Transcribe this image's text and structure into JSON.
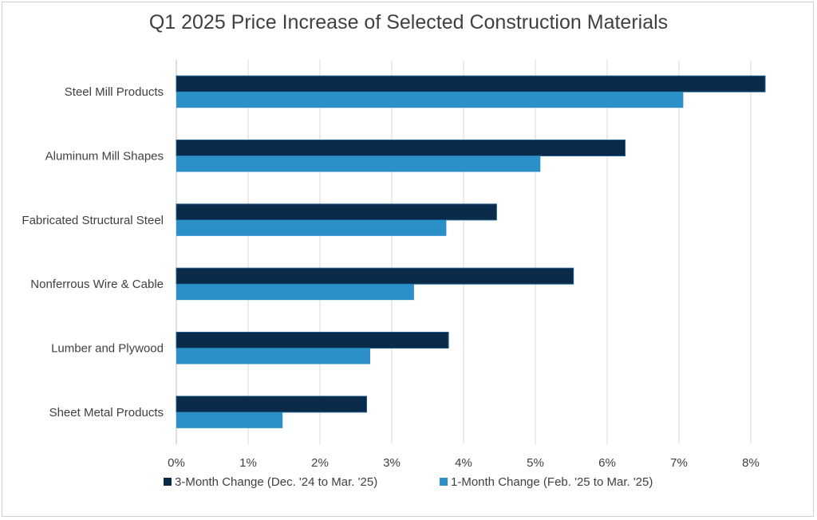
{
  "chart_data": {
    "type": "bar",
    "orientation": "horizontal",
    "title": "Q1 2025 Price Increase of Selected Construction Materials",
    "categories": [
      "Steel Mill Products",
      "Aluminum Mill Shapes",
      "Fabricated Structural Steel",
      "Nonferrous Wire & Cable",
      "Lumber and Plywood",
      "Sheet Metal Products"
    ],
    "series": [
      {
        "name": "3-Month Change (Dec. '24 to Mar. '25)",
        "color": "#0a2a4a",
        "values": [
          8.2,
          6.25,
          4.46,
          5.53,
          3.79,
          2.65
        ]
      },
      {
        "name": "1-Month Change (Feb. '25 to Mar. '25)",
        "color": "#2b8fc8",
        "values": [
          7.06,
          5.07,
          3.76,
          3.31,
          2.7,
          1.48
        ]
      }
    ],
    "xlim": [
      0,
      8
    ],
    "xticks": [
      "0%",
      "1%",
      "2%",
      "3%",
      "4%",
      "5%",
      "6%",
      "7%",
      "8%"
    ],
    "grid": true,
    "legend_position": "bottom"
  }
}
